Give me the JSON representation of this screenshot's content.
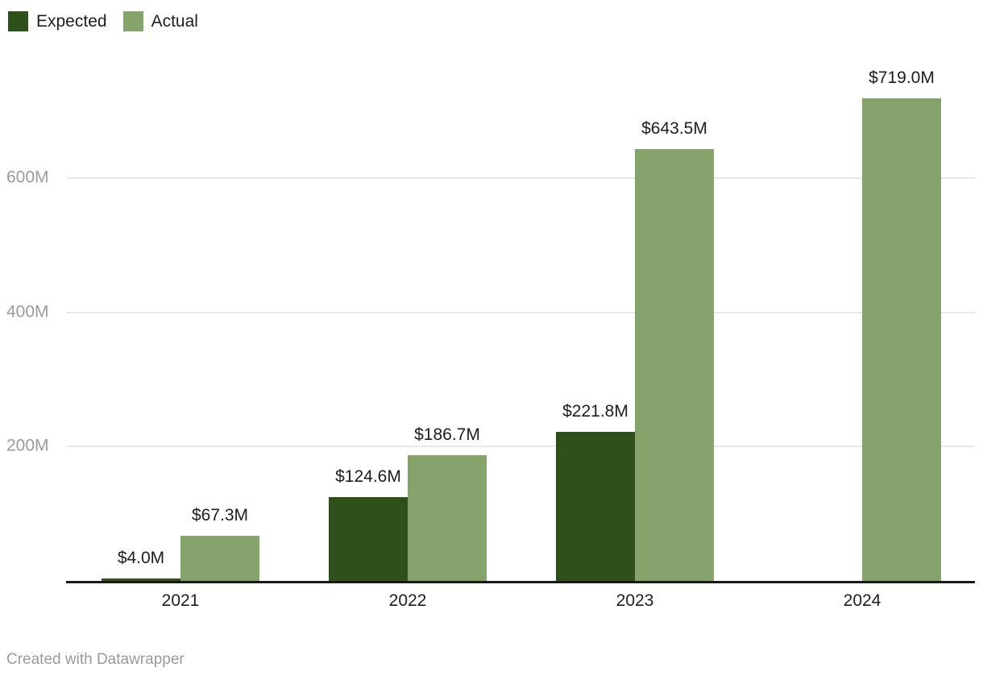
{
  "legend": {
    "items": [
      {
        "label": "Expected",
        "color": "#2f4f1b"
      },
      {
        "label": "Actual",
        "color": "#85a36b"
      }
    ]
  },
  "footer": {
    "credit": "Created with Datawrapper"
  },
  "chart_data": {
    "type": "bar",
    "categories": [
      "2021",
      "2022",
      "2023",
      "2024"
    ],
    "series": [
      {
        "name": "Expected",
        "color": "#2f4f1b",
        "values": [
          4.0,
          124.6,
          221.8,
          null
        ],
        "labels": [
          "$4.0M",
          "$124.6M",
          "$221.8M",
          null
        ]
      },
      {
        "name": "Actual",
        "color": "#85a36b",
        "values": [
          67.3,
          186.7,
          643.5,
          719.0
        ],
        "labels": [
          "$67.3M",
          "$186.7M",
          "$643.5M",
          "$719.0M"
        ]
      }
    ],
    "unit": "M",
    "title": "",
    "xlabel": "",
    "ylabel": "",
    "y_axis": {
      "ticks": [
        {
          "value": 200,
          "label": "200M"
        },
        {
          "value": 400,
          "label": "400M"
        },
        {
          "value": 600,
          "label": "600M"
        }
      ],
      "min": 0,
      "max": 720
    },
    "grid": true,
    "legend_position": "top-left",
    "value_labels_shown": true
  }
}
